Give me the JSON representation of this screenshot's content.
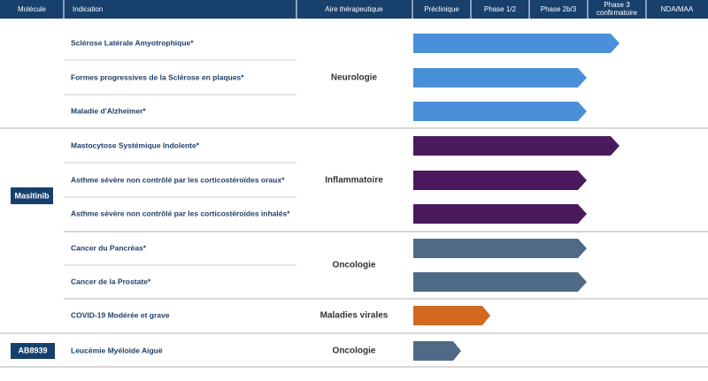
{
  "header": [
    "Molécule",
    "Indication",
    "Aire thérapeutique",
    "Préclinique",
    "Phase 1/2",
    "Phase 2b/3",
    [
      "Phase 3",
      "confirmatoire"
    ],
    "NDA/MAA"
  ],
  "rows": [
    {
      "indication": "Sclérose Latérale Amyotrophique*"
    },
    {
      "indication": "Formes progressives de la Sclérose en plaques*"
    },
    {
      "indication": "Maladie d'Alzheimer*"
    },
    {
      "indication": "Mastocytose Systémique Indolente*"
    },
    {
      "indication": "Asthme sévère non contrôlé par les corticostéroïdes oraux*"
    },
    {
      "indication": "Asthme sévère non contrôlé par les corticostéroïdes inhalés*"
    },
    {
      "indication": "Cancer du Pancréas*"
    },
    {
      "indication": "Cancer de la Prostate*"
    },
    {
      "indication": "COVID-19 Modérée et grave"
    },
    {
      "indication": "Leucémie Myéloïde Aiguë"
    }
  ],
  "areas": [
    "Neurologie",
    "Inflammatoire",
    "Oncologie",
    "Maladies virales",
    "Oncologie"
  ],
  "molecules": [
    "Masitinib",
    "AB8939"
  ]
}
